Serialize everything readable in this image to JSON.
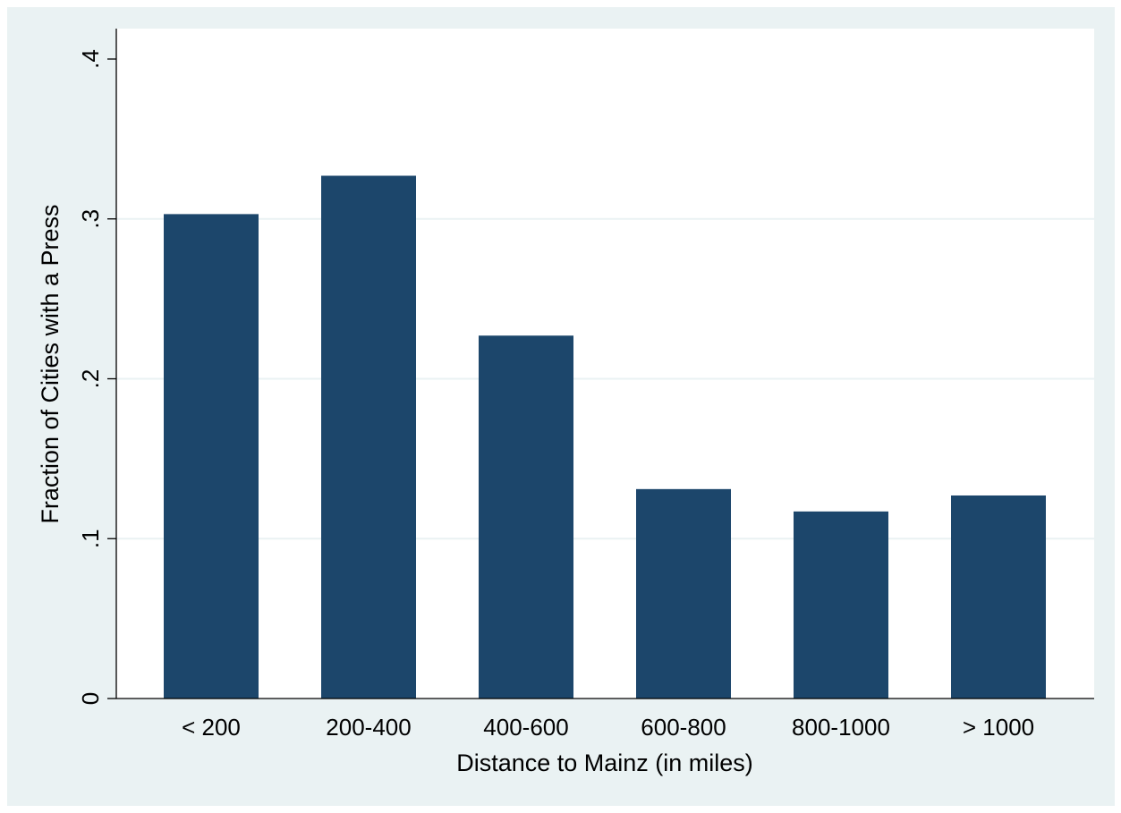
{
  "colors": {
    "background": "#eaf2f3",
    "plot_background": "#ffffff",
    "bar": "#1c466b",
    "gridline": "#eaf2f3",
    "axis": "#000000"
  },
  "chart_data": {
    "type": "bar",
    "title": "",
    "xlabel": "Distance to Mainz (in miles)",
    "ylabel": "Fraction of Cities with a Press",
    "categories": [
      "< 200",
      "200-400",
      "400-600",
      "600-800",
      "800-1000",
      "> 1000"
    ],
    "values": [
      0.303,
      0.327,
      0.227,
      0.131,
      0.117,
      0.127
    ],
    "ylim": [
      0,
      0.4
    ],
    "yticks": [
      0,
      0.1,
      0.2,
      0.3,
      0.4
    ],
    "ytick_labels": [
      "0",
      ".1",
      ".2",
      ".3",
      ".4"
    ],
    "grid": true,
    "legend": "none"
  }
}
